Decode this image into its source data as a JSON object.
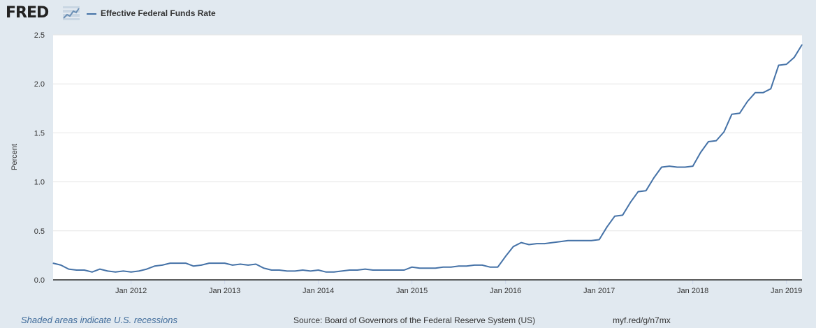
{
  "header": {
    "logo_text": "FRED",
    "logo_icon": "line-graph-icon",
    "legend_label": "Effective Federal Funds Rate",
    "series_color": "#4572a7"
  },
  "footer": {
    "recession_note": "Shaded areas indicate U.S. recessions",
    "source": "Source: Board of Governors of the Federal Reserve System (US)",
    "short_url": "myf.red/g/n7mx"
  },
  "chart_data": {
    "type": "line",
    "title": "",
    "xlabel": "",
    "ylabel": "Percent",
    "ylim": [
      0,
      2.5
    ],
    "yticks": [
      "0.0",
      "0.5",
      "1.0",
      "1.5",
      "2.0",
      "2.5"
    ],
    "xticks": [
      "Jan 2012",
      "Jan 2013",
      "Jan 2014",
      "Jan 2015",
      "Jan 2016",
      "Jan 2017",
      "Jan 2018",
      "Jan 2019"
    ],
    "grid": true,
    "legend": "top-left",
    "series": [
      {
        "name": "Effective Federal Funds Rate",
        "start": "2011-03",
        "frequency": "monthly",
        "values": [
          0.17,
          0.15,
          0.11,
          0.1,
          0.1,
          0.08,
          0.11,
          0.09,
          0.08,
          0.09,
          0.08,
          0.09,
          0.11,
          0.14,
          0.15,
          0.17,
          0.17,
          0.17,
          0.14,
          0.15,
          0.17,
          0.17,
          0.17,
          0.15,
          0.16,
          0.15,
          0.16,
          0.12,
          0.1,
          0.1,
          0.09,
          0.09,
          0.1,
          0.09,
          0.1,
          0.08,
          0.08,
          0.09,
          0.1,
          0.1,
          0.11,
          0.1,
          0.1,
          0.1,
          0.1,
          0.1,
          0.13,
          0.12,
          0.12,
          0.12,
          0.13,
          0.13,
          0.14,
          0.14,
          0.15,
          0.15,
          0.13,
          0.13,
          0.24,
          0.34,
          0.38,
          0.36,
          0.37,
          0.37,
          0.38,
          0.39,
          0.4,
          0.4,
          0.4,
          0.4,
          0.41,
          0.54,
          0.65,
          0.66,
          0.79,
          0.9,
          0.91,
          1.04,
          1.15,
          1.16,
          1.15,
          1.15,
          1.16,
          1.3,
          1.41,
          1.42,
          1.51,
          1.69,
          1.7,
          1.82,
          1.91,
          1.91,
          1.95,
          2.19,
          2.2,
          2.27,
          2.4
        ]
      }
    ]
  }
}
